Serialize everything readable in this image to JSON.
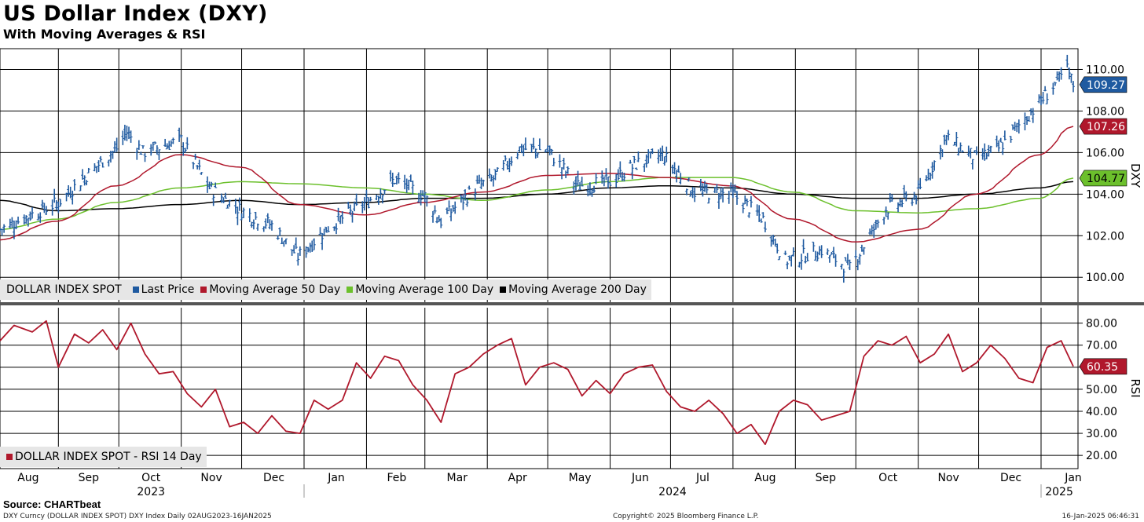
{
  "header": {
    "title": "US Dollar Index (DXY)",
    "subtitle": "With Moving Averages & RSI"
  },
  "footer": {
    "source": "Source: CHARTbeat",
    "left": "DXY Curncy (DOLLAR INDEX SPOT) DXY Index  Daily 02AUG2023-16JAN2025",
    "center": "Copyright© 2025 Bloomberg Finance L.P.",
    "right": "16-Jan-2025 06:46:31"
  },
  "colors": {
    "price": "#1f5aa0",
    "ma50": "#b0182c",
    "ma100": "#6cc02c",
    "ma200": "#000000",
    "rsi": "#b0182c"
  },
  "chart_data": [
    {
      "type": "line",
      "name": "price-panel",
      "y_axis_title": "DXY",
      "ylim": [
        98.8,
        111.0
      ],
      "y_ticks": [
        "100.00",
        "102.00",
        "104.00",
        "106.00",
        "108.00",
        "110.00"
      ],
      "y_tick_values": [
        100,
        102,
        104,
        106,
        108,
        110
      ],
      "grid": true,
      "legend_position": "bottom-left",
      "legend": {
        "label": "DOLLAR INDEX SPOT",
        "items": [
          "Last Price",
          "Moving Average 50 Day",
          "Moving Average 100 Day",
          "Moving Average 200 Day"
        ]
      },
      "last_value_labels": [
        {
          "series": "Last Price",
          "value": 109.27,
          "text": "109.27"
        },
        {
          "series": "Moving Average 50 Day",
          "value": 107.26,
          "text": "107.26"
        },
        {
          "series": "Moving Average 100 Day",
          "value": 104.77,
          "text": "104.77"
        }
      ],
      "series": [
        {
          "name": "Last Price",
          "style": "ohlc-bars",
          "x": [
            "2023-08-02",
            "2023-08-15",
            "2023-08-31",
            "2023-09-15",
            "2023-09-29",
            "2023-10-04",
            "2023-10-12",
            "2023-10-31",
            "2023-11-14",
            "2023-11-30",
            "2023-12-15",
            "2023-12-28",
            "2024-01-12",
            "2024-01-31",
            "2024-02-14",
            "2024-02-29",
            "2024-03-08",
            "2024-03-25",
            "2024-04-04",
            "2024-04-16",
            "2024-04-30",
            "2024-05-15",
            "2024-05-31",
            "2024-06-14",
            "2024-06-26",
            "2024-07-12",
            "2024-07-31",
            "2024-08-15",
            "2024-08-26",
            "2024-09-13",
            "2024-09-27",
            "2024-10-15",
            "2024-10-31",
            "2024-11-14",
            "2024-11-29",
            "2024-12-10",
            "2024-12-31",
            "2025-01-07",
            "2025-01-13",
            "2025-01-16"
          ],
          "values": [
            102.3,
            102.9,
            103.6,
            105.0,
            106.2,
            107.0,
            106.0,
            106.6,
            104.3,
            103.2,
            102.5,
            101.0,
            102.4,
            103.6,
            104.7,
            103.9,
            102.7,
            104.3,
            104.8,
            106.2,
            106.1,
            104.4,
            104.6,
            105.5,
            105.9,
            104.1,
            104.0,
            102.8,
            100.8,
            101.3,
            100.4,
            103.3,
            104.0,
            106.7,
            105.7,
            106.2,
            108.5,
            109.3,
            110.0,
            109.27
          ]
        },
        {
          "name": "Moving Average 50 Day",
          "style": "line",
          "x": [
            "2023-08-02",
            "2023-08-31",
            "2023-09-29",
            "2023-10-31",
            "2023-11-30",
            "2023-12-29",
            "2024-01-31",
            "2024-02-29",
            "2024-03-29",
            "2024-04-30",
            "2024-05-31",
            "2024-06-28",
            "2024-07-31",
            "2024-08-30",
            "2024-09-30",
            "2024-10-31",
            "2024-11-29",
            "2024-12-31",
            "2025-01-16"
          ],
          "values": [
            101.8,
            102.7,
            104.4,
            105.9,
            105.3,
            103.5,
            103.0,
            103.6,
            104.1,
            104.9,
            105.0,
            104.8,
            104.4,
            102.8,
            101.7,
            102.3,
            104.0,
            105.9,
            107.26
          ]
        },
        {
          "name": "Moving Average 100 Day",
          "style": "line",
          "x": [
            "2023-08-02",
            "2023-08-31",
            "2023-09-29",
            "2023-10-31",
            "2023-11-30",
            "2023-12-29",
            "2024-01-31",
            "2024-02-29",
            "2024-03-29",
            "2024-04-30",
            "2024-05-31",
            "2024-06-28",
            "2024-07-31",
            "2024-08-30",
            "2024-09-30",
            "2024-10-31",
            "2024-11-29",
            "2024-12-31",
            "2025-01-16"
          ],
          "values": [
            102.3,
            102.8,
            103.6,
            104.3,
            104.6,
            104.5,
            104.3,
            104.0,
            103.7,
            104.2,
            104.6,
            104.8,
            104.8,
            104.1,
            103.2,
            103.1,
            103.3,
            103.8,
            104.77
          ]
        },
        {
          "name": "Moving Average 200 Day",
          "style": "line",
          "x": [
            "2023-08-02",
            "2023-08-31",
            "2023-09-29",
            "2023-10-31",
            "2023-11-30",
            "2023-12-29",
            "2024-01-31",
            "2024-02-29",
            "2024-03-29",
            "2024-04-30",
            "2024-05-31",
            "2024-06-28",
            "2024-07-31",
            "2024-08-30",
            "2024-09-30",
            "2024-10-31",
            "2024-11-29",
            "2024-12-31",
            "2025-01-16"
          ],
          "values": [
            103.7,
            103.2,
            103.3,
            103.5,
            103.7,
            103.5,
            103.6,
            103.8,
            103.8,
            104.0,
            104.3,
            104.4,
            104.3,
            104.0,
            103.8,
            103.8,
            104.0,
            104.3,
            104.6
          ]
        }
      ]
    },
    {
      "type": "line",
      "name": "rsi-panel",
      "y_axis_title": "RSI",
      "ylim": [
        14,
        87
      ],
      "y_ticks": [
        "20.00",
        "30.00",
        "40.00",
        "50.00",
        "60.00",
        "70.00",
        "80.00"
      ],
      "y_tick_values": [
        20,
        30,
        40,
        50,
        60,
        70,
        80
      ],
      "grid": true,
      "legend_position": "bottom-left",
      "legend": {
        "items": [
          "DOLLAR INDEX SPOT - RSI 14 Day"
        ]
      },
      "last_value_labels": [
        {
          "series": "DOLLAR INDEX SPOT - RSI 14 Day",
          "value": 60.35,
          "text": "60.35"
        }
      ],
      "series": [
        {
          "name": "DOLLAR INDEX SPOT - RSI 14 Day",
          "x": [
            "2023-08-02",
            "2023-08-09",
            "2023-08-18",
            "2023-08-25",
            "2023-08-31",
            "2023-09-08",
            "2023-09-15",
            "2023-09-22",
            "2023-09-29",
            "2023-10-06",
            "2023-10-13",
            "2023-10-20",
            "2023-10-27",
            "2023-11-03",
            "2023-11-10",
            "2023-11-17",
            "2023-11-24",
            "2023-12-01",
            "2023-12-08",
            "2023-12-15",
            "2023-12-22",
            "2023-12-29",
            "2024-01-05",
            "2024-01-12",
            "2024-01-19",
            "2024-01-26",
            "2024-02-02",
            "2024-02-09",
            "2024-02-16",
            "2024-02-23",
            "2024-03-01",
            "2024-03-08",
            "2024-03-15",
            "2024-03-22",
            "2024-03-29",
            "2024-04-05",
            "2024-04-12",
            "2024-04-19",
            "2024-04-26",
            "2024-05-03",
            "2024-05-10",
            "2024-05-17",
            "2024-05-24",
            "2024-05-31",
            "2024-06-07",
            "2024-06-14",
            "2024-06-21",
            "2024-06-28",
            "2024-07-05",
            "2024-07-12",
            "2024-07-19",
            "2024-07-26",
            "2024-08-02",
            "2024-08-09",
            "2024-08-16",
            "2024-08-23",
            "2024-08-30",
            "2024-09-06",
            "2024-09-13",
            "2024-09-20",
            "2024-09-27",
            "2024-10-04",
            "2024-10-11",
            "2024-10-18",
            "2024-10-25",
            "2024-11-01",
            "2024-11-08",
            "2024-11-15",
            "2024-11-22",
            "2024-11-29",
            "2024-12-06",
            "2024-12-13",
            "2024-12-20",
            "2024-12-27",
            "2025-01-03",
            "2025-01-10",
            "2025-01-16"
          ],
          "values": [
            72,
            79,
            76,
            81,
            60,
            75,
            71,
            77,
            68,
            80,
            66,
            57,
            58,
            48,
            42,
            50,
            33,
            35,
            30,
            38,
            31,
            30,
            45,
            41,
            45,
            62,
            55,
            65,
            63,
            52,
            45,
            35,
            57,
            60,
            66,
            70,
            73,
            52,
            60,
            62,
            59,
            47,
            54,
            48,
            57,
            60,
            61,
            49,
            42,
            40,
            45,
            39,
            30,
            34,
            25,
            40,
            45,
            43,
            36,
            38,
            40,
            65,
            72,
            70,
            74,
            62,
            66,
            75,
            58,
            62,
            70,
            64,
            55,
            53,
            69,
            72,
            60.35
          ]
        }
      ]
    }
  ],
  "x_axis": {
    "months": [
      {
        "label": "Aug",
        "date": "2023-08-16"
      },
      {
        "label": "Sep",
        "date": "2023-09-15"
      },
      {
        "label": "Oct",
        "date": "2023-10-16"
      },
      {
        "label": "Nov",
        "date": "2023-11-15"
      },
      {
        "label": "Dec",
        "date": "2023-12-16"
      },
      {
        "label": "Jan",
        "date": "2024-01-16"
      },
      {
        "label": "Feb",
        "date": "2024-02-15"
      },
      {
        "label": "Mar",
        "date": "2024-03-16"
      },
      {
        "label": "Apr",
        "date": "2024-04-15"
      },
      {
        "label": "May",
        "date": "2024-05-16"
      },
      {
        "label": "Jun",
        "date": "2024-06-15"
      },
      {
        "label": "Jul",
        "date": "2024-07-16"
      },
      {
        "label": "Aug",
        "date": "2024-08-16"
      },
      {
        "label": "Sep",
        "date": "2024-09-15"
      },
      {
        "label": "Oct",
        "date": "2024-10-16"
      },
      {
        "label": "Nov",
        "date": "2024-11-15"
      },
      {
        "label": "Dec",
        "date": "2024-12-16"
      },
      {
        "label": "Jan",
        "date": "2025-01-16"
      }
    ],
    "month_gridlines": [
      "2023-08-31",
      "2023-09-30",
      "2023-10-31",
      "2023-11-30",
      "2023-12-31",
      "2024-01-31",
      "2024-02-29",
      "2024-03-31",
      "2024-04-30",
      "2024-05-31",
      "2024-06-30",
      "2024-07-31",
      "2024-08-31",
      "2024-09-30",
      "2024-10-31",
      "2024-11-30",
      "2024-12-31"
    ],
    "years": [
      {
        "label": "2023",
        "date": "2023-10-16"
      },
      {
        "label": "2024",
        "date": "2024-07-01"
      },
      {
        "label": "2025",
        "date": "2025-01-09"
      }
    ],
    "year_dividers": [
      "2023-12-31",
      "2024-12-31"
    ],
    "start": "2023-08-02",
    "end": "2025-01-16"
  }
}
